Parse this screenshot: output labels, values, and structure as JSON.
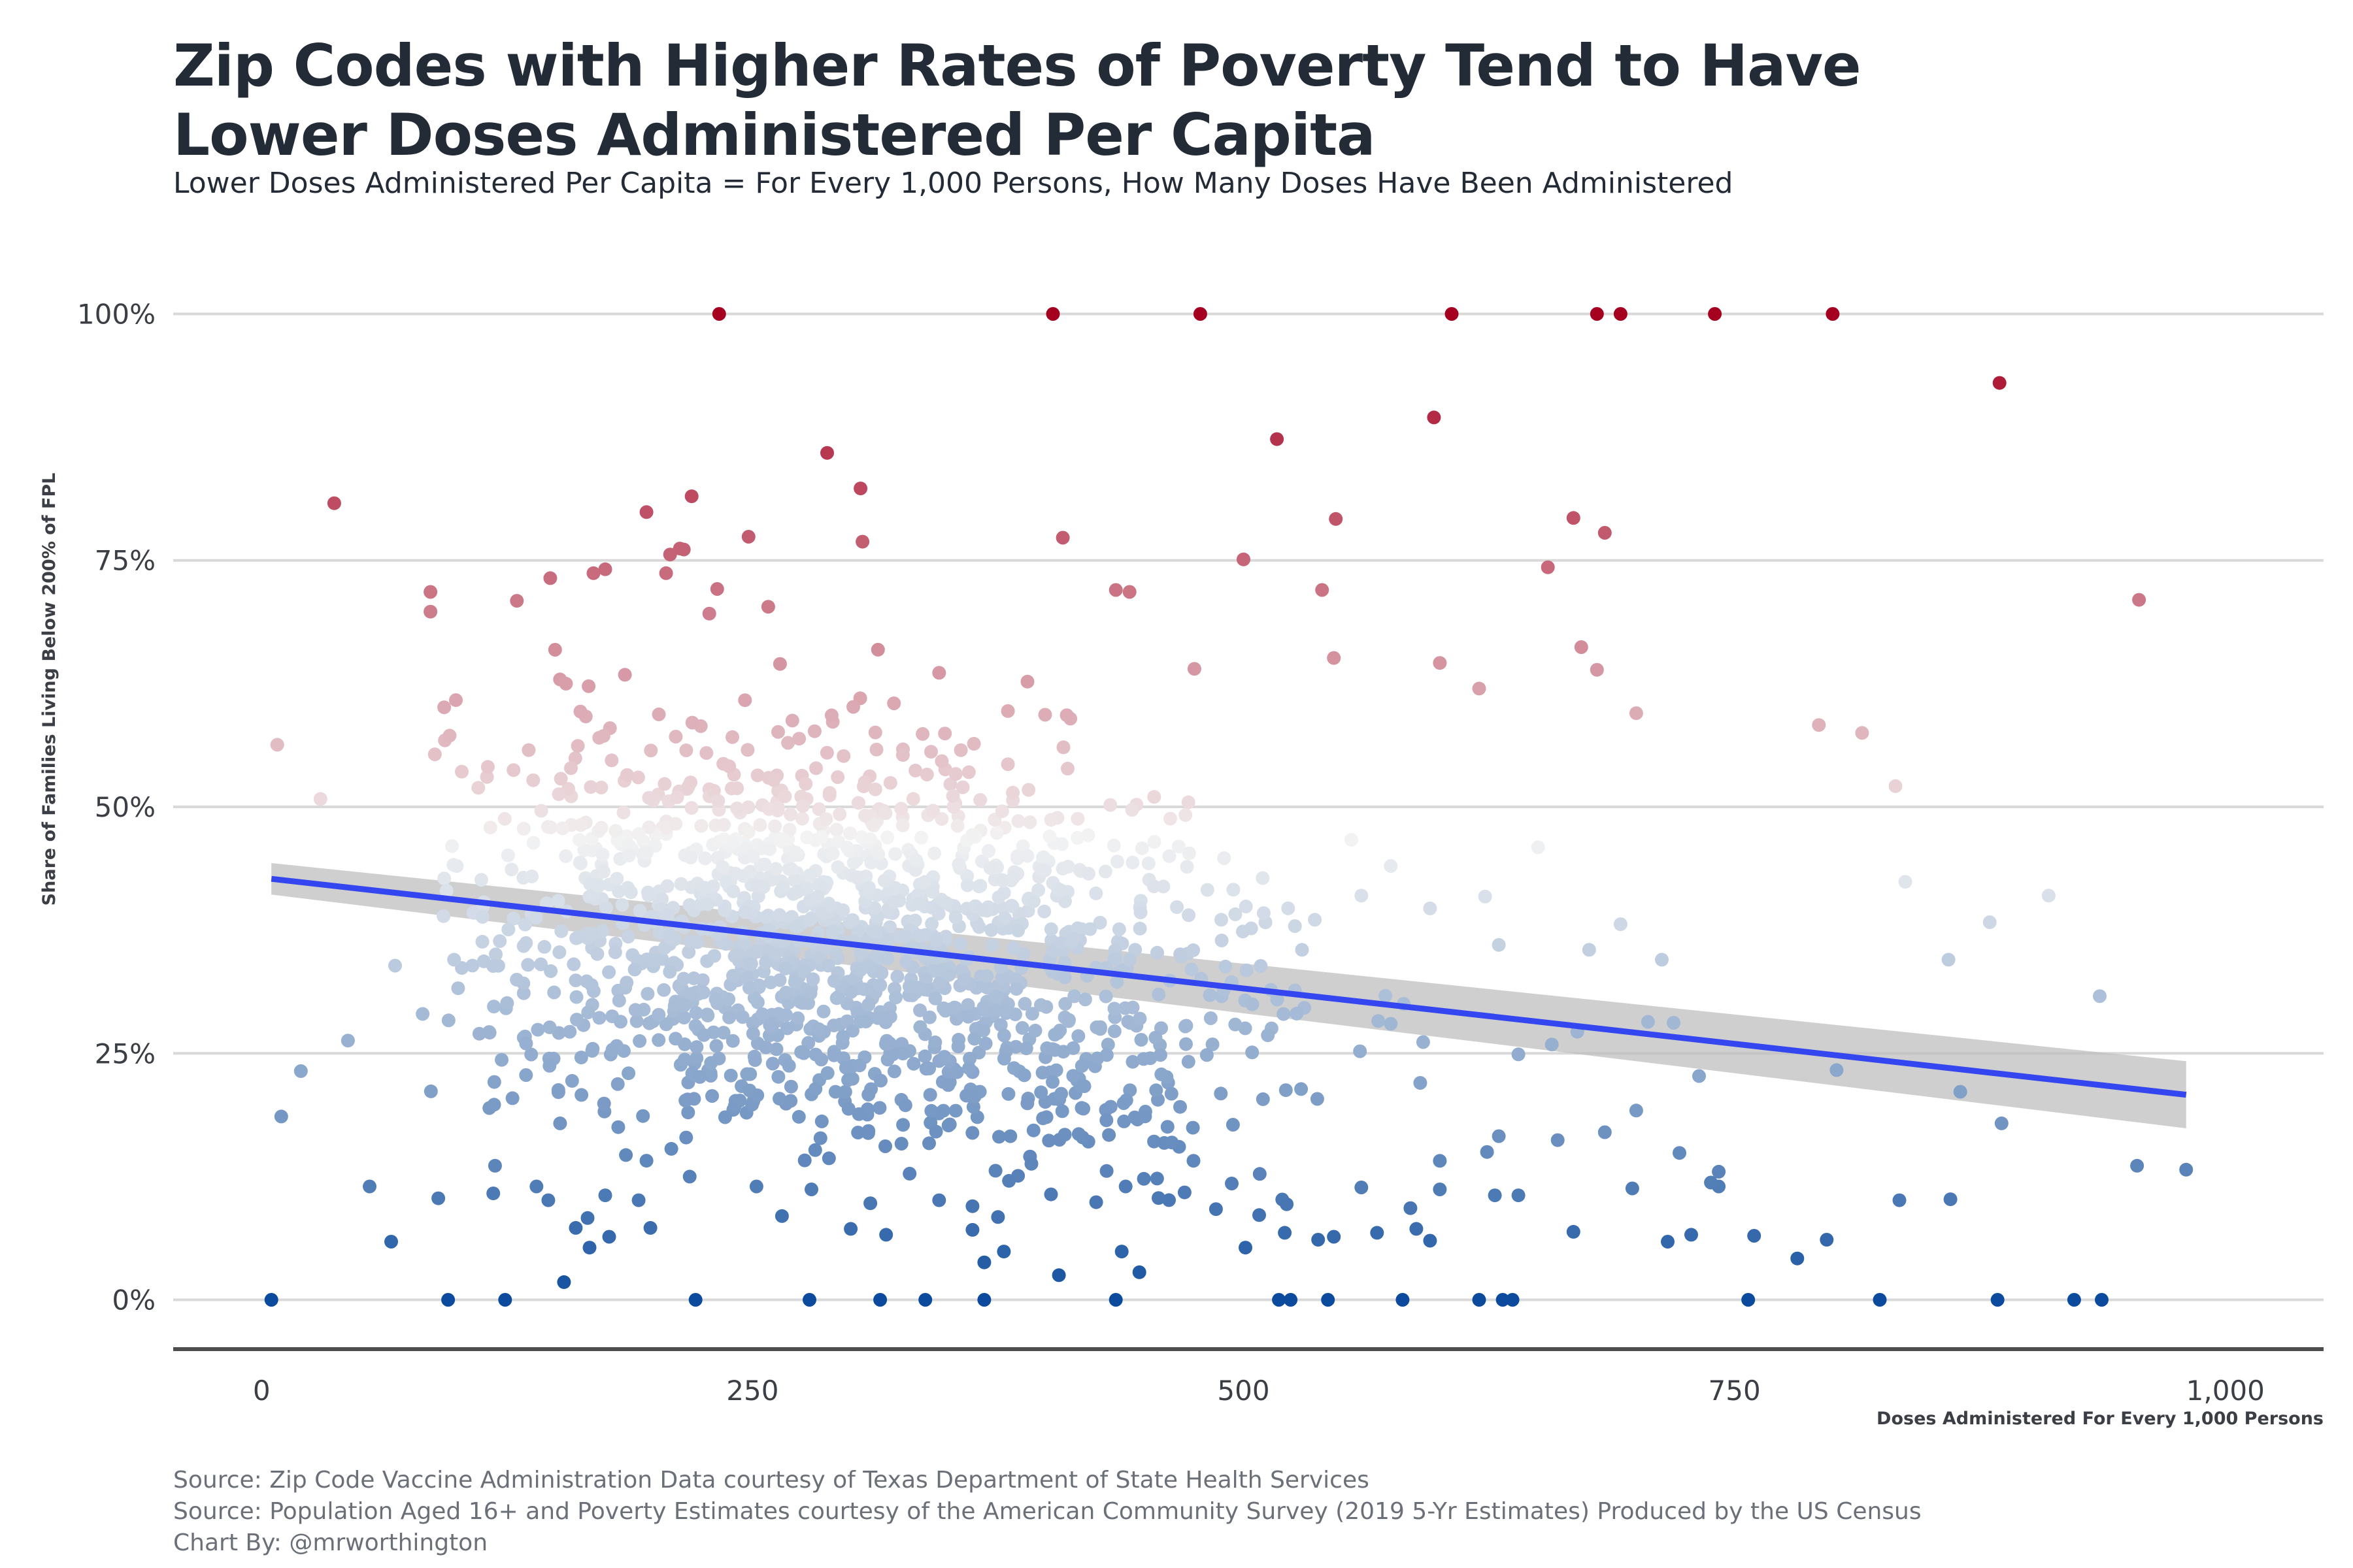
{
  "title_lines": [
    "Zip Codes with Higher Rates of Poverty Tend to Have",
    "Lower Doses Administered Per Capita"
  ],
  "subtitle": "Lower Doses Administered Per Capita = For Every 1,000 Persons, How Many Doses Have Been Administered",
  "caption_lines": [
    "Source: Zip Code Vaccine Administration Data courtesy of Texas Department of State Health Services",
    "Source: Population Aged 16+ and Poverty Estimates courtesy of the American Community Survey (2019 5-Yr Estimates) Produced by the US Census",
    "Chart By: @mrworthington"
  ],
  "colors": {
    "text": "#232b36",
    "gridline": "#d9d9d9",
    "axis_line": "#4d4d4d",
    "fit_line": "#3346f0",
    "confidence_band": "#bdbdbd",
    "scale_low": "#0b4a9c",
    "scale_mid": "#f3f3f3",
    "scale_high": "#a50020"
  },
  "chart_data": {
    "type": "scatter",
    "title": "Zip Codes with Higher Rates of Poverty Tend to Have Lower Doses Administered Per Capita",
    "subtitle": "Lower Doses Administered Per Capita = For Every 1,000 Persons, How Many Doses Have Been Administered",
    "xlabel": "Doses Administered For Every 1,000 Persons",
    "ylabel": "Share of Families Living Below 200% of FPL",
    "xlim": [
      -45,
      1050
    ],
    "ylim": [
      -5,
      105
    ],
    "x_ticks": [
      0,
      250,
      500,
      750,
      1000
    ],
    "x_tick_labels": [
      "0",
      "250",
      "500",
      "750",
      "1,000"
    ],
    "y_ticks": [
      0,
      25,
      50,
      75,
      100
    ],
    "y_tick_labels": [
      "0%",
      "25%",
      "50%",
      "75%",
      "100%"
    ],
    "gridlines": "horizontal major",
    "color_encoding": "y value (diverging blue - white - red)",
    "trend_line": {
      "method": "linear fit",
      "x": [
        5,
        980
      ],
      "y": [
        42.7,
        20.8
      ],
      "band_low": [
        41.1,
        17.4
      ],
      "band_high": [
        44.3,
        24.2
      ]
    },
    "points": [
      [
        233,
        100
      ],
      [
        403,
        100
      ],
      [
        478,
        100
      ],
      [
        606,
        100
      ],
      [
        680,
        100
      ],
      [
        692,
        100
      ],
      [
        740,
        100
      ],
      [
        800,
        100
      ],
      [
        885,
        93
      ],
      [
        37,
        80.8
      ],
      [
        288,
        85.9
      ],
      [
        305,
        82.3
      ],
      [
        517,
        87.3
      ],
      [
        597,
        89.5
      ],
      [
        196,
        79.9
      ],
      [
        219,
        81.5
      ],
      [
        248,
        77.4
      ],
      [
        306,
        76.9
      ],
      [
        408,
        77.3
      ],
      [
        547,
        79.2
      ],
      [
        668,
        79.3
      ],
      [
        684,
        77.8
      ],
      [
        86,
        71.8
      ],
      [
        86,
        69.8
      ],
      [
        130,
        70.9
      ],
      [
        147,
        73.2
      ],
      [
        169,
        73.7
      ],
      [
        175,
        74.1
      ],
      [
        206,
        73.7
      ],
      [
        208,
        75.6
      ],
      [
        213,
        76.2
      ],
      [
        215,
        76.1
      ],
      [
        228,
        69.6
      ],
      [
        232,
        72.1
      ],
      [
        258,
        70.3
      ],
      [
        435,
        72.0
      ],
      [
        442,
        71.8
      ],
      [
        500,
        75.1
      ],
      [
        540,
        72.0
      ],
      [
        655,
        74.3
      ],
      [
        956,
        71.0
      ],
      [
        8,
        56.3
      ],
      [
        30,
        50.8
      ],
      [
        93,
        60.1
      ],
      [
        155,
        62.5
      ],
      [
        185,
        63.4
      ],
      [
        264,
        64.5
      ],
      [
        322,
        60.5
      ],
      [
        345,
        63.6
      ],
      [
        390,
        62.7
      ],
      [
        410,
        59.3
      ],
      [
        475,
        64.0
      ],
      [
        546,
        65.1
      ],
      [
        600,
        64.6
      ],
      [
        620,
        62.0
      ],
      [
        672,
        66.2
      ],
      [
        680,
        63.9
      ],
      [
        700,
        59.5
      ],
      [
        793,
        58.3
      ],
      [
        815,
        57.5
      ],
      [
        832,
        52.1
      ],
      [
        10,
        18.6
      ],
      [
        20,
        23.2
      ],
      [
        44,
        26.3
      ],
      [
        68,
        33.9
      ],
      [
        82,
        29.0
      ],
      [
        98,
        34.5
      ],
      [
        125,
        30.1
      ],
      [
        144,
        35.8
      ],
      [
        160,
        32.4
      ],
      [
        172,
        28.6
      ],
      [
        190,
        33.5
      ],
      [
        55,
        11.5
      ],
      [
        66,
        5.9
      ],
      [
        90,
        10.3
      ],
      [
        118,
        10.8
      ],
      [
        140,
        11.5
      ],
      [
        146,
        10.1
      ],
      [
        152,
        17.9
      ],
      [
        160,
        7.3
      ],
      [
        166,
        8.3
      ],
      [
        175,
        10.6
      ],
      [
        192,
        10.1
      ],
      [
        198,
        7.3
      ],
      [
        218,
        12.5
      ],
      [
        252,
        11.5
      ],
      [
        265,
        8.5
      ],
      [
        280,
        11.2
      ],
      [
        300,
        7.2
      ],
      [
        310,
        9.8
      ],
      [
        330,
        12.8
      ],
      [
        345,
        10.1
      ],
      [
        362,
        9.5
      ],
      [
        375,
        8.4
      ],
      [
        392,
        13.8
      ],
      [
        402,
        10.7
      ],
      [
        425,
        9.9
      ],
      [
        440,
        11.5
      ],
      [
        456,
        12.3
      ],
      [
        470,
        10.9
      ],
      [
        494,
        11.8
      ],
      [
        508,
        8.6
      ],
      [
        522,
        9.7
      ],
      [
        538,
        6.1
      ],
      [
        560,
        11.4
      ],
      [
        585,
        9.3
      ],
      [
        600,
        11.2
      ],
      [
        628,
        10.6
      ],
      [
        640,
        10.6
      ],
      [
        668,
        6.9
      ],
      [
        698,
        11.3
      ],
      [
        716,
        5.9
      ],
      [
        728,
        6.6
      ],
      [
        742,
        11.5
      ],
      [
        760,
        6.5
      ],
      [
        782,
        4.2
      ],
      [
        797,
        6.1
      ],
      [
        834,
        10.1
      ],
      [
        860,
        10.2
      ],
      [
        154,
        1.8
      ],
      [
        167,
        5.3
      ],
      [
        177,
        6.4
      ],
      [
        318,
        6.6
      ],
      [
        362,
        7.1
      ],
      [
        368,
        3.8
      ],
      [
        378,
        4.9
      ],
      [
        406,
        2.5
      ],
      [
        438,
        4.9
      ],
      [
        447,
        2.8
      ],
      [
        486,
        9.2
      ],
      [
        501,
        5.3
      ],
      [
        521,
        6.8
      ],
      [
        546,
        6.4
      ],
      [
        568,
        6.8
      ],
      [
        588,
        7.2
      ],
      [
        595,
        6.0
      ],
      [
        5,
        0
      ],
      [
        95,
        0
      ],
      [
        124,
        0
      ],
      [
        221,
        0
      ],
      [
        279,
        0
      ],
      [
        315,
        0
      ],
      [
        338,
        0
      ],
      [
        368,
        0
      ],
      [
        435,
        0
      ],
      [
        518,
        0
      ],
      [
        524,
        0
      ],
      [
        543,
        0
      ],
      [
        581,
        0
      ],
      [
        620,
        0
      ],
      [
        632,
        0
      ],
      [
        637,
        0
      ],
      [
        757,
        0
      ],
      [
        824,
        0
      ],
      [
        884,
        0
      ],
      [
        923,
        0
      ],
      [
        937,
        0
      ],
      [
        600,
        14.1
      ],
      [
        624,
        15.0
      ],
      [
        630,
        16.6
      ],
      [
        660,
        16.2
      ],
      [
        684,
        17.0
      ],
      [
        700,
        19.2
      ],
      [
        722,
        14.9
      ],
      [
        738,
        11.9
      ],
      [
        742,
        13.0
      ],
      [
        886,
        17.9
      ],
      [
        955,
        13.6
      ],
      [
        980,
        13.2
      ],
      [
        657,
        25.9
      ],
      [
        670,
        27.2
      ],
      [
        706,
        28.2
      ],
      [
        719,
        28.1
      ],
      [
        732,
        22.7
      ],
      [
        802,
        23.3
      ],
      [
        865,
        21.1
      ],
      [
        640,
        24.9
      ],
      [
        590,
        22.0
      ],
      [
        575,
        28.0
      ],
      [
        676,
        35.5
      ],
      [
        692,
        38.1
      ],
      [
        713,
        34.5
      ],
      [
        837,
        42.4
      ],
      [
        859,
        34.5
      ],
      [
        880,
        38.3
      ],
      [
        910,
        41.0
      ],
      [
        936,
        30.8
      ],
      [
        623,
        40.9
      ],
      [
        650,
        45.9
      ],
      [
        595,
        39.7
      ],
      [
        630,
        36.0
      ],
      [
        560,
        41.0
      ],
      [
        575,
        44.0
      ]
    ]
  }
}
